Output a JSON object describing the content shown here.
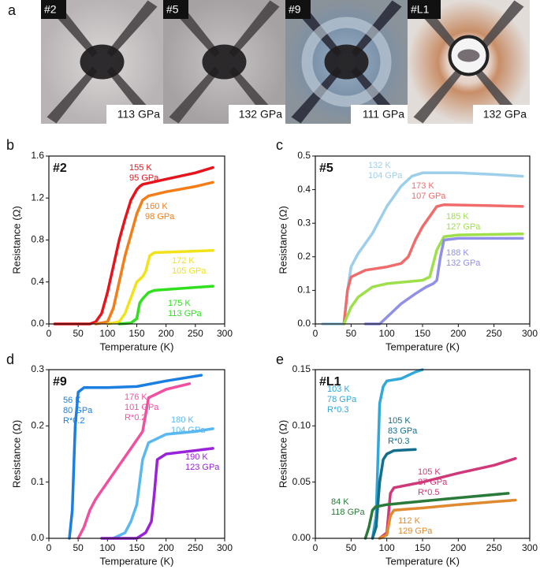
{
  "panel_a": {
    "letter": "a",
    "images": [
      {
        "sample": "#2",
        "pressure": "113 GPa"
      },
      {
        "sample": "#5",
        "pressure": "132 GPa"
      },
      {
        "sample": "#9",
        "pressure": "111 GPa"
      },
      {
        "sample": "#L1",
        "pressure": "132 GPa"
      }
    ]
  },
  "chart_data": [
    {
      "type": "line",
      "panel": "b",
      "sample": "#2",
      "x_label": "Temperature (K)",
      "y_label": "Resistance (Ω)",
      "xlim": [
        0,
        300
      ],
      "xticks": [
        0,
        50,
        100,
        150,
        200,
        250,
        300
      ],
      "ylim": [
        0,
        1.6
      ],
      "yticks": [
        {
          "value": 0,
          "label": "0.0"
        },
        0.4,
        0.8,
        1.2,
        1.6
      ],
      "series": [
        {
          "color": "#e8141c",
          "label": [
            "155 K",
            "95 GPa"
          ],
          "x": [
            10,
            70,
            80,
            90,
            100,
            110,
            120,
            130,
            140,
            150,
            155,
            160,
            200,
            250,
            280
          ],
          "values": [
            0,
            0,
            0.02,
            0.1,
            0.3,
            0.55,
            0.8,
            1.0,
            1.18,
            1.28,
            1.31,
            1.33,
            1.38,
            1.44,
            1.49
          ]
        },
        {
          "color": "#f57d18",
          "label": [
            "160 K",
            "98 GPa"
          ],
          "x": [
            80,
            100,
            110,
            120,
            130,
            140,
            150,
            160,
            170,
            200,
            250,
            280
          ],
          "values": [
            0,
            0.02,
            0.15,
            0.4,
            0.65,
            0.85,
            1.05,
            1.18,
            1.22,
            1.26,
            1.31,
            1.35
          ]
        },
        {
          "color": "#f2e21a",
          "label": [
            "172 K",
            "105 GPa"
          ],
          "x": [
            100,
            120,
            130,
            140,
            150,
            160,
            165,
            172,
            180,
            280
          ],
          "values": [
            0,
            0.02,
            0.1,
            0.25,
            0.4,
            0.45,
            0.5,
            0.65,
            0.68,
            0.7
          ]
        },
        {
          "color": "#30e01e",
          "label": [
            "175 K",
            "113 GPa"
          ],
          "x": [
            120,
            140,
            150,
            155,
            160,
            170,
            180,
            280
          ],
          "values": [
            0,
            0.01,
            0.05,
            0.2,
            0.24,
            0.3,
            0.32,
            0.36
          ]
        }
      ]
    },
    {
      "type": "line",
      "panel": "c",
      "sample": "#5",
      "x_label": "Temperature (K)",
      "y_label": "Resistance (Ω)",
      "xlim": [
        0,
        300
      ],
      "xticks": [
        0,
        50,
        100,
        150,
        200,
        250,
        300
      ],
      "ylim": [
        0,
        0.5
      ],
      "yticks": [
        {
          "value": 0,
          "label": "0.0"
        },
        0.1,
        0.2,
        0.3,
        0.4,
        0.5
      ],
      "series": [
        {
          "color": "#9ecfea",
          "label": [
            "132 K",
            "104 GPa"
          ],
          "x": [
            10,
            40,
            45,
            50,
            60,
            70,
            80,
            90,
            100,
            110,
            120,
            135,
            150,
            170,
            200,
            250,
            290
          ],
          "values": [
            0,
            0,
            0.1,
            0.17,
            0.21,
            0.24,
            0.27,
            0.31,
            0.35,
            0.38,
            0.41,
            0.44,
            0.45,
            0.45,
            0.45,
            0.445,
            0.44
          ]
        },
        {
          "color": "#f06c6c",
          "label": [
            "173 K",
            "107 GPa"
          ],
          "x": [
            40,
            45,
            50,
            70,
            100,
            120,
            130,
            140,
            150,
            160,
            170,
            180,
            250,
            290
          ],
          "values": [
            0,
            0.1,
            0.14,
            0.16,
            0.17,
            0.18,
            0.2,
            0.25,
            0.29,
            0.32,
            0.35,
            0.355,
            0.352,
            0.35
          ]
        },
        {
          "color": "#9de04a",
          "label": [
            "185 K",
            "127 GPa"
          ],
          "x": [
            40,
            50,
            60,
            80,
            100,
            150,
            160,
            165,
            170,
            180,
            200,
            290
          ],
          "values": [
            0,
            0.05,
            0.08,
            0.11,
            0.12,
            0.13,
            0.14,
            0.18,
            0.22,
            0.26,
            0.265,
            0.268
          ]
        },
        {
          "color": "#9090e8",
          "label": [
            "188 K",
            "132 GPa"
          ],
          "x": [
            70,
            90,
            100,
            120,
            140,
            155,
            165,
            170,
            175,
            180,
            200,
            290
          ],
          "values": [
            0,
            0,
            0.02,
            0.06,
            0.09,
            0.11,
            0.12,
            0.13,
            0.2,
            0.25,
            0.255,
            0.255
          ]
        }
      ]
    },
    {
      "type": "line",
      "panel": "d",
      "sample": "#9",
      "x_label": "Temperature (K)",
      "y_label": "Resistance (Ω)",
      "xlim": [
        0,
        300
      ],
      "xticks": [
        0,
        50,
        100,
        150,
        200,
        250,
        300
      ],
      "ylim": [
        0,
        0.3
      ],
      "yticks": [
        {
          "value": 0,
          "label": "0.0"
        },
        0.1,
        0.2,
        0.3
      ],
      "series": [
        {
          "color": "#1a7fe0",
          "label": [
            "56 K",
            "80 GPa",
            "R*0.2"
          ],
          "x": [
            35,
            40,
            45,
            50,
            60,
            100,
            150,
            200,
            260
          ],
          "values": [
            0,
            0.05,
            0.2,
            0.26,
            0.268,
            0.268,
            0.27,
            0.28,
            0.29
          ]
        },
        {
          "color": "#f050a0",
          "label": [
            "176 K",
            "101 GPa",
            "R*0.2"
          ],
          "x": [
            50,
            60,
            70,
            80,
            100,
            120,
            140,
            160,
            165,
            170,
            200,
            240
          ],
          "values": [
            0,
            0.02,
            0.05,
            0.07,
            0.1,
            0.13,
            0.16,
            0.19,
            0.22,
            0.25,
            0.265,
            0.275
          ]
        },
        {
          "color": "#5ab8f0",
          "label": [
            "180 K",
            "104 GPa"
          ],
          "x": [
            110,
            130,
            140,
            150,
            155,
            160,
            170,
            200,
            250,
            280
          ],
          "values": [
            0,
            0.01,
            0.03,
            0.06,
            0.1,
            0.14,
            0.17,
            0.185,
            0.19,
            0.195
          ]
        },
        {
          "color": "#9a22d8",
          "label": [
            "190 K",
            "123 GPa"
          ],
          "x": [
            90,
            150,
            165,
            175,
            180,
            185,
            200,
            280
          ],
          "values": [
            0,
            0,
            0.01,
            0.03,
            0.08,
            0.14,
            0.15,
            0.16
          ]
        }
      ]
    },
    {
      "type": "line",
      "panel": "e",
      "sample": "#L1",
      "x_label": "Temperature (K)",
      "y_label": "Resistance (Ω)",
      "xlim": [
        0,
        300
      ],
      "xticks": [
        0,
        50,
        100,
        150,
        200,
        250,
        300
      ],
      "ylim": [
        0,
        0.15
      ],
      "yticks": [
        {
          "value": 0,
          "label": "0.00"
        },
        {
          "value": 0.05,
          "label": "0.05"
        },
        {
          "value": 0.1,
          "label": "0.10"
        },
        {
          "value": 0.15,
          "label": "0.15"
        }
      ],
      "series": [
        {
          "color": "#30a8d8",
          "label": [
            "103 K",
            "78 GPa",
            "R*0.3"
          ],
          "x": [
            80,
            85,
            88,
            90,
            95,
            100,
            120,
            140,
            150
          ],
          "values": [
            0,
            0.02,
            0.08,
            0.12,
            0.135,
            0.14,
            0.142,
            0.148,
            0.15
          ]
        },
        {
          "color": "#146e8c",
          "label": [
            "105 K",
            "83 GPa",
            "R*0.3"
          ],
          "x": [
            80,
            85,
            90,
            95,
            100,
            110,
            140
          ],
          "values": [
            0,
            0.01,
            0.05,
            0.07,
            0.075,
            0.078,
            0.079
          ]
        },
        {
          "color": "#d0387a",
          "label": [
            "105 K",
            "87 GPa",
            "R*0.5"
          ],
          "x": [
            90,
            100,
            105,
            110,
            150,
            200,
            250,
            280
          ],
          "values": [
            0,
            0.005,
            0.04,
            0.045,
            0.05,
            0.058,
            0.065,
            0.071
          ]
        },
        {
          "color": "#2a7a3a",
          "label": [
            "84 K",
            "118 GPa"
          ],
          "x": [
            70,
            75,
            80,
            84,
            100,
            150,
            200,
            270
          ],
          "values": [
            0,
            0.01,
            0.025,
            0.028,
            0.03,
            0.033,
            0.036,
            0.04
          ]
        },
        {
          "color": "#e08a30",
          "label": [
            "112 K",
            "129 GPa"
          ],
          "x": [
            90,
            100,
            105,
            110,
            150,
            200,
            280
          ],
          "values": [
            0,
            0.003,
            0.02,
            0.025,
            0.027,
            0.03,
            0.034
          ]
        }
      ]
    }
  ]
}
